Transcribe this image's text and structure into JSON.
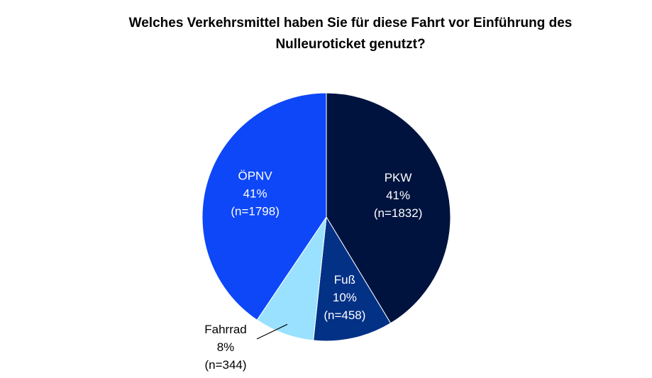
{
  "chart_data": {
    "type": "pie",
    "title": [
      "Welches Verkehrsmittel haben Sie für diese Fahrt vor Einführung  des",
      "Nulleuroticket genutzt?"
    ],
    "slices": [
      {
        "name": "PKW",
        "value": 1832,
        "percent_label": "41%",
        "n_label": "(n=1832)",
        "color": "#00133F",
        "label_color": "#FFFFFF"
      },
      {
        "name": "Fuß",
        "value": 458,
        "percent_label": "10%",
        "n_label": "(n=458)",
        "color": "#033186",
        "label_color": "#FFFFFF"
      },
      {
        "name": "Fahrrad",
        "value": 344,
        "percent_label": "8%",
        "n_label": "(n=344)",
        "color": "#99E1FF",
        "label_color": "#000000"
      },
      {
        "name": "ÖPNV",
        "value": 1798,
        "percent_label": "41%",
        "n_label": "(n=1798)",
        "color": "#0D47F7",
        "label_color": "#FFFFFF"
      }
    ],
    "start_angle_deg": 0,
    "direction": "clockwise",
    "legend": "none"
  }
}
